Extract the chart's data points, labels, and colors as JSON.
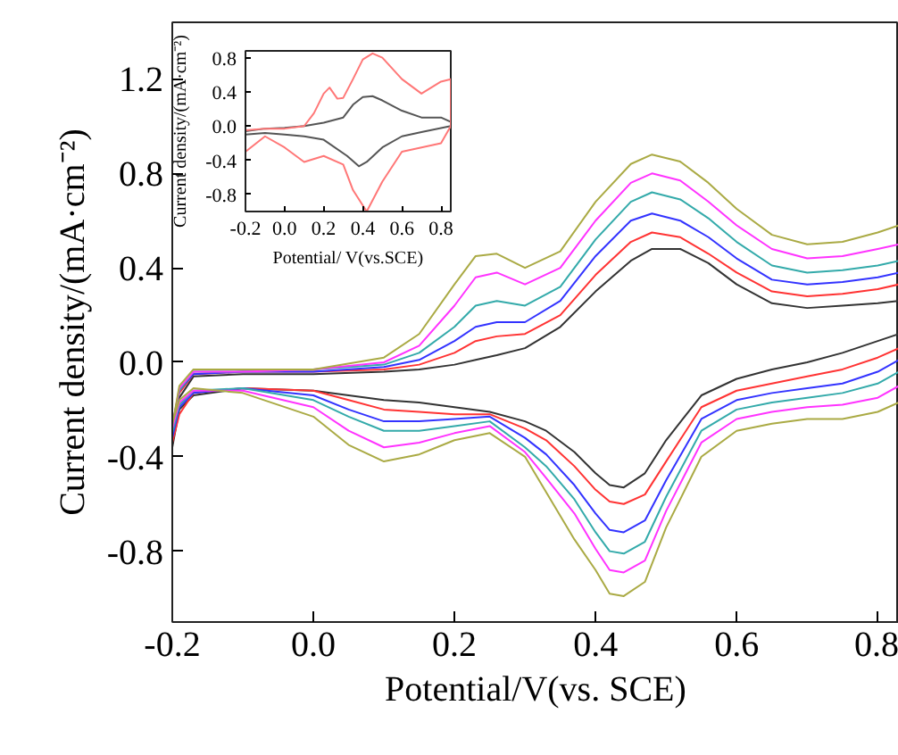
{
  "chart_data": [
    {
      "type": "line",
      "xlabel": "Potential/V(vs. SCE)",
      "ylabel": "Current density/(mA·cm⁻²)",
      "x": [
        -0.2,
        -0.19,
        -0.17,
        -0.1,
        0.0,
        0.1,
        0.15,
        0.2,
        0.23,
        0.26,
        0.3,
        0.35,
        0.4,
        0.45,
        0.48,
        0.52,
        0.56,
        0.6,
        0.65,
        0.7,
        0.75,
        0.8,
        0.83,
        0.83,
        0.8,
        0.75,
        0.7,
        0.65,
        0.6,
        0.55,
        0.5,
        0.47,
        0.44,
        0.42,
        0.4,
        0.37,
        0.33,
        0.3,
        0.25,
        0.2,
        0.15,
        0.1,
        0.05,
        0.0,
        -0.1,
        -0.17,
        -0.19,
        -0.2
      ],
      "xlim": [
        -0.2,
        0.83
      ],
      "ylim": [
        -1.1,
        1.44
      ],
      "xticks": [
        -0.2,
        {
          "value": 0,
          "label": "0.0"
        },
        0.2,
        0.4,
        0.6,
        0.8
      ],
      "yticks": [
        -0.8,
        -0.4,
        {
          "value": 0,
          "label": "0.0"
        },
        0.4,
        0.8,
        1.2
      ],
      "series": [
        {
          "color": "#333333",
          "values": [
            -0.27,
            -0.15,
            -0.06,
            -0.05,
            -0.05,
            -0.04,
            -0.03,
            -0.01,
            0.01,
            0.03,
            0.06,
            0.15,
            0.3,
            0.43,
            0.48,
            0.48,
            0.42,
            0.33,
            0.25,
            0.23,
            0.24,
            0.25,
            0.26,
            0.12,
            0.09,
            0.04,
            0.0,
            -0.03,
            -0.07,
            -0.14,
            -0.33,
            -0.47,
            -0.53,
            -0.52,
            -0.47,
            -0.38,
            -0.29,
            -0.25,
            -0.21,
            -0.19,
            -0.17,
            -0.16,
            -0.14,
            -0.12,
            -0.11,
            -0.14,
            -0.2,
            -0.36
          ]
        },
        {
          "color": "#ff3333",
          "values": [
            -0.27,
            -0.13,
            -0.05,
            -0.04,
            -0.04,
            -0.03,
            -0.01,
            0.04,
            0.09,
            0.11,
            0.12,
            0.2,
            0.37,
            0.51,
            0.55,
            0.53,
            0.46,
            0.38,
            0.3,
            0.28,
            0.29,
            0.31,
            0.33,
            0.06,
            0.02,
            -0.03,
            -0.06,
            -0.09,
            -0.12,
            -0.19,
            -0.42,
            -0.56,
            -0.6,
            -0.59,
            -0.54,
            -0.44,
            -0.33,
            -0.28,
            -0.22,
            -0.22,
            -0.21,
            -0.2,
            -0.16,
            -0.12,
            -0.11,
            -0.13,
            -0.22,
            -0.34
          ]
        },
        {
          "color": "#3333ff",
          "values": [
            -0.27,
            -0.12,
            -0.05,
            -0.04,
            -0.04,
            -0.02,
            0.01,
            0.09,
            0.15,
            0.17,
            0.17,
            0.26,
            0.45,
            0.6,
            0.63,
            0.6,
            0.53,
            0.44,
            0.35,
            0.33,
            0.34,
            0.36,
            0.38,
            0.01,
            -0.04,
            -0.09,
            -0.11,
            -0.13,
            -0.16,
            -0.24,
            -0.5,
            -0.67,
            -0.72,
            -0.71,
            -0.64,
            -0.52,
            -0.39,
            -0.32,
            -0.23,
            -0.24,
            -0.25,
            -0.25,
            -0.2,
            -0.14,
            -0.11,
            -0.13,
            -0.19,
            -0.32
          ]
        },
        {
          "color": "#33aaaa",
          "values": [
            -0.27,
            -0.12,
            -0.04,
            -0.04,
            -0.03,
            -0.01,
            0.04,
            0.15,
            0.24,
            0.26,
            0.24,
            0.32,
            0.52,
            0.68,
            0.72,
            0.69,
            0.61,
            0.51,
            0.41,
            0.38,
            0.39,
            0.41,
            0.43,
            -0.04,
            -0.09,
            -0.13,
            -0.15,
            -0.17,
            -0.2,
            -0.29,
            -0.57,
            -0.76,
            -0.81,
            -0.8,
            -0.72,
            -0.58,
            -0.44,
            -0.36,
            -0.25,
            -0.27,
            -0.29,
            -0.29,
            -0.23,
            -0.16,
            -0.11,
            -0.12,
            -0.18,
            -0.3
          ]
        },
        {
          "color": "#ff33ff",
          "values": [
            -0.27,
            -0.11,
            -0.04,
            -0.04,
            -0.03,
            0.0,
            0.07,
            0.24,
            0.36,
            0.38,
            0.33,
            0.4,
            0.6,
            0.76,
            0.8,
            0.77,
            0.68,
            0.58,
            0.48,
            0.44,
            0.45,
            0.48,
            0.5,
            -0.1,
            -0.15,
            -0.18,
            -0.19,
            -0.21,
            -0.24,
            -0.34,
            -0.63,
            -0.84,
            -0.89,
            -0.88,
            -0.79,
            -0.64,
            -0.49,
            -0.38,
            -0.27,
            -0.3,
            -0.34,
            -0.36,
            -0.29,
            -0.19,
            -0.12,
            -0.12,
            -0.17,
            -0.28
          ]
        },
        {
          "color": "#aaaa44",
          "values": [
            -0.27,
            -0.1,
            -0.03,
            -0.03,
            -0.03,
            0.02,
            0.12,
            0.33,
            0.45,
            0.46,
            0.4,
            0.47,
            0.68,
            0.84,
            0.88,
            0.85,
            0.76,
            0.65,
            0.54,
            0.5,
            0.51,
            0.55,
            0.58,
            -0.17,
            -0.21,
            -0.24,
            -0.24,
            -0.26,
            -0.29,
            -0.4,
            -0.7,
            -0.93,
            -0.99,
            -0.98,
            -0.88,
            -0.75,
            -0.55,
            -0.4,
            -0.3,
            -0.33,
            -0.39,
            -0.42,
            -0.35,
            -0.23,
            -0.13,
            -0.11,
            -0.16,
            -0.26
          ]
        }
      ]
    },
    {
      "type": "line",
      "xlabel": "Potential/ V(vs.SCE)",
      "ylabel": "Current density/(mA·cm⁻²)",
      "xlim": [
        -0.2,
        0.85
      ],
      "ylim": [
        -1.0,
        0.88
      ],
      "xticks": [
        -0.2,
        {
          "value": 0,
          "label": "0.0"
        },
        0.2,
        0.4,
        0.6,
        0.8
      ],
      "yticks": [
        -0.8,
        -0.4,
        {
          "value": 0,
          "label": "0.0"
        },
        0.4,
        0.8
      ],
      "series": [
        {
          "color": "#555555",
          "x": [
            -0.2,
            -0.1,
            0.0,
            0.1,
            0.2,
            0.3,
            0.35,
            0.4,
            0.45,
            0.5,
            0.6,
            0.7,
            0.8,
            0.85,
            0.85,
            0.7,
            0.6,
            0.5,
            0.42,
            0.38,
            0.32,
            0.2,
            0.1,
            0.0,
            -0.1,
            -0.2
          ],
          "values": [
            -0.06,
            -0.03,
            -0.02,
            0.0,
            0.04,
            0.1,
            0.25,
            0.34,
            0.35,
            0.3,
            0.18,
            0.1,
            0.1,
            0.05,
            0.0,
            -0.07,
            -0.12,
            -0.25,
            -0.42,
            -0.47,
            -0.35,
            -0.16,
            -0.12,
            -0.1,
            -0.08,
            -0.1
          ]
        },
        {
          "color": "#ff7777",
          "x": [
            -0.2,
            -0.1,
            0.0,
            0.1,
            0.15,
            0.2,
            0.23,
            0.27,
            0.3,
            0.35,
            0.4,
            0.45,
            0.5,
            0.6,
            0.7,
            0.8,
            0.85,
            0.85,
            0.8,
            0.7,
            0.6,
            0.5,
            0.42,
            0.35,
            0.3,
            0.2,
            0.1,
            0.0,
            -0.1,
            -0.2
          ],
          "values": [
            -0.05,
            -0.03,
            -0.03,
            0.0,
            0.15,
            0.38,
            0.45,
            0.32,
            0.33,
            0.55,
            0.78,
            0.85,
            0.8,
            0.55,
            0.38,
            0.52,
            0.55,
            0.0,
            -0.2,
            -0.25,
            -0.3,
            -0.65,
            -1.0,
            -0.75,
            -0.45,
            -0.35,
            -0.42,
            -0.25,
            -0.12,
            -0.3
          ]
        }
      ]
    }
  ]
}
